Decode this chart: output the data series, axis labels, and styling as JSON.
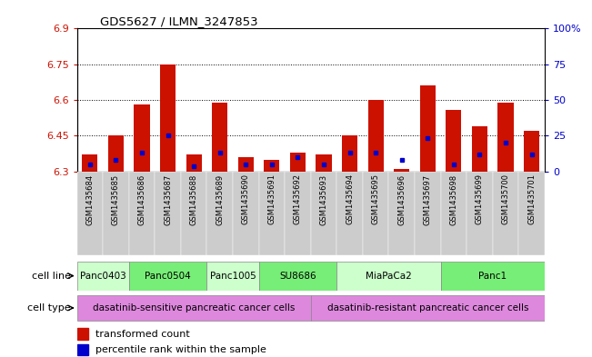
{
  "title": "GDS5627 / ILMN_3247853",
  "samples": [
    "GSM1435684",
    "GSM1435685",
    "GSM1435686",
    "GSM1435687",
    "GSM1435688",
    "GSM1435689",
    "GSM1435690",
    "GSM1435691",
    "GSM1435692",
    "GSM1435693",
    "GSM1435694",
    "GSM1435695",
    "GSM1435696",
    "GSM1435697",
    "GSM1435698",
    "GSM1435699",
    "GSM1435700",
    "GSM1435701"
  ],
  "bar_heights": [
    6.37,
    6.45,
    6.58,
    6.75,
    6.37,
    6.59,
    6.36,
    6.35,
    6.38,
    6.37,
    6.45,
    6.6,
    6.31,
    6.66,
    6.56,
    6.49,
    6.59,
    6.47
  ],
  "blue_dot_values": [
    6.33,
    6.35,
    6.38,
    6.45,
    6.32,
    6.38,
    6.33,
    6.33,
    6.36,
    6.33,
    6.38,
    6.38,
    6.35,
    6.44,
    6.33,
    6.37,
    6.42,
    6.37
  ],
  "ylim_left": [
    6.3,
    6.9
  ],
  "yticks_left": [
    6.3,
    6.45,
    6.6,
    6.75,
    6.9
  ],
  "ytick_labels_left": [
    "6.3",
    "6.45",
    "6.6",
    "6.75",
    "6.9"
  ],
  "ylim_right": [
    0,
    100
  ],
  "yticks_right": [
    0,
    25,
    50,
    75,
    100
  ],
  "ytick_labels_right": [
    "0",
    "25",
    "50",
    "75",
    "100%"
  ],
  "bar_color": "#cc1100",
  "dot_color": "#0000cc",
  "bar_width": 0.6,
  "cell_line_groups": [
    {
      "label": "Panc0403",
      "indices": [
        0,
        1
      ],
      "color": "#ccffcc"
    },
    {
      "label": "Panc0504",
      "indices": [
        2,
        3,
        4
      ],
      "color": "#77ee77"
    },
    {
      "label": "Panc1005",
      "indices": [
        5,
        6
      ],
      "color": "#ccffcc"
    },
    {
      "label": "SU8686",
      "indices": [
        7,
        8,
        9
      ],
      "color": "#77ee77"
    },
    {
      "label": "MiaPaCa2",
      "indices": [
        10,
        11,
        12,
        13
      ],
      "color": "#ccffcc"
    },
    {
      "label": "Panc1",
      "indices": [
        14,
        15,
        16,
        17
      ],
      "color": "#77ee77"
    }
  ],
  "sensitive_indices": [
    0,
    1,
    2,
    3,
    4,
    5,
    6,
    7,
    8
  ],
  "resistant_indices": [
    9,
    10,
    11,
    12,
    13,
    14,
    15,
    16,
    17
  ],
  "sensitive_label": "dasatinib-sensitive pancreatic cancer cells",
  "resistant_label": "dasatinib-resistant pancreatic cancer cells",
  "cell_type_color": "#dd88dd",
  "tick_color_left": "#cc1100",
  "tick_color_right": "#0000cc",
  "legend_label_red": "transformed count",
  "legend_label_blue": "percentile rank within the sample",
  "xtick_bg_color": "#cccccc"
}
